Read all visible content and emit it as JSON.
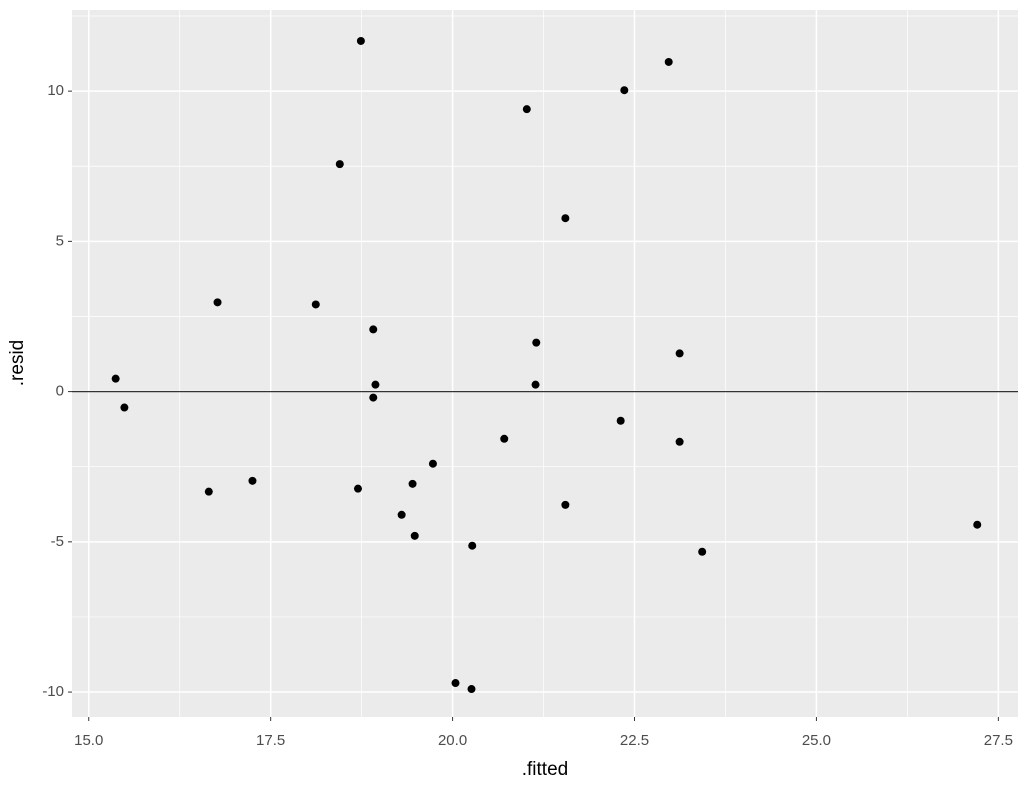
{
  "chart_data": {
    "type": "scatter",
    "xlabel": ".fitted",
    "ylabel": ".resid",
    "xlim": [
      14.77,
      27.77
    ],
    "ylim": [
      -10.83,
      12.7
    ],
    "xticks": [
      {
        "value": 15,
        "label": "15.0"
      },
      {
        "value": 17.5,
        "label": "17.5"
      },
      {
        "value": 20,
        "label": "20.0"
      },
      {
        "value": 22.5,
        "label": "22.5"
      },
      {
        "value": 25,
        "label": "25.0"
      },
      {
        "value": 27.5,
        "label": "27.5"
      }
    ],
    "yticks": [
      -10,
      -5,
      0,
      5,
      10
    ],
    "grid": true,
    "hline": 0,
    "color": "#000000",
    "x": [
      15.37,
      15.49,
      16.65,
      16.77,
      17.25,
      18.12,
      18.45,
      18.7,
      18.74,
      18.91,
      18.94,
      18.91,
      19.3,
      19.45,
      19.48,
      19.73,
      20.04,
      20.26,
      20.27,
      20.71,
      21.02,
      21.14,
      21.15,
      21.55,
      21.55,
      22.31,
      22.36,
      22.97,
      23.12,
      23.12,
      23.43,
      27.21
    ],
    "values": [
      0.43,
      -0.53,
      -3.33,
      2.97,
      -2.97,
      2.9,
      7.57,
      -3.23,
      11.67,
      2.07,
      0.23,
      -0.2,
      -4.1,
      -3.07,
      -4.8,
      -2.4,
      -9.7,
      -9.9,
      -5.13,
      -1.57,
      9.4,
      0.23,
      1.63,
      5.77,
      -3.77,
      -0.97,
      10.03,
      10.97,
      1.27,
      -1.67,
      -5.33,
      -4.43
    ]
  }
}
